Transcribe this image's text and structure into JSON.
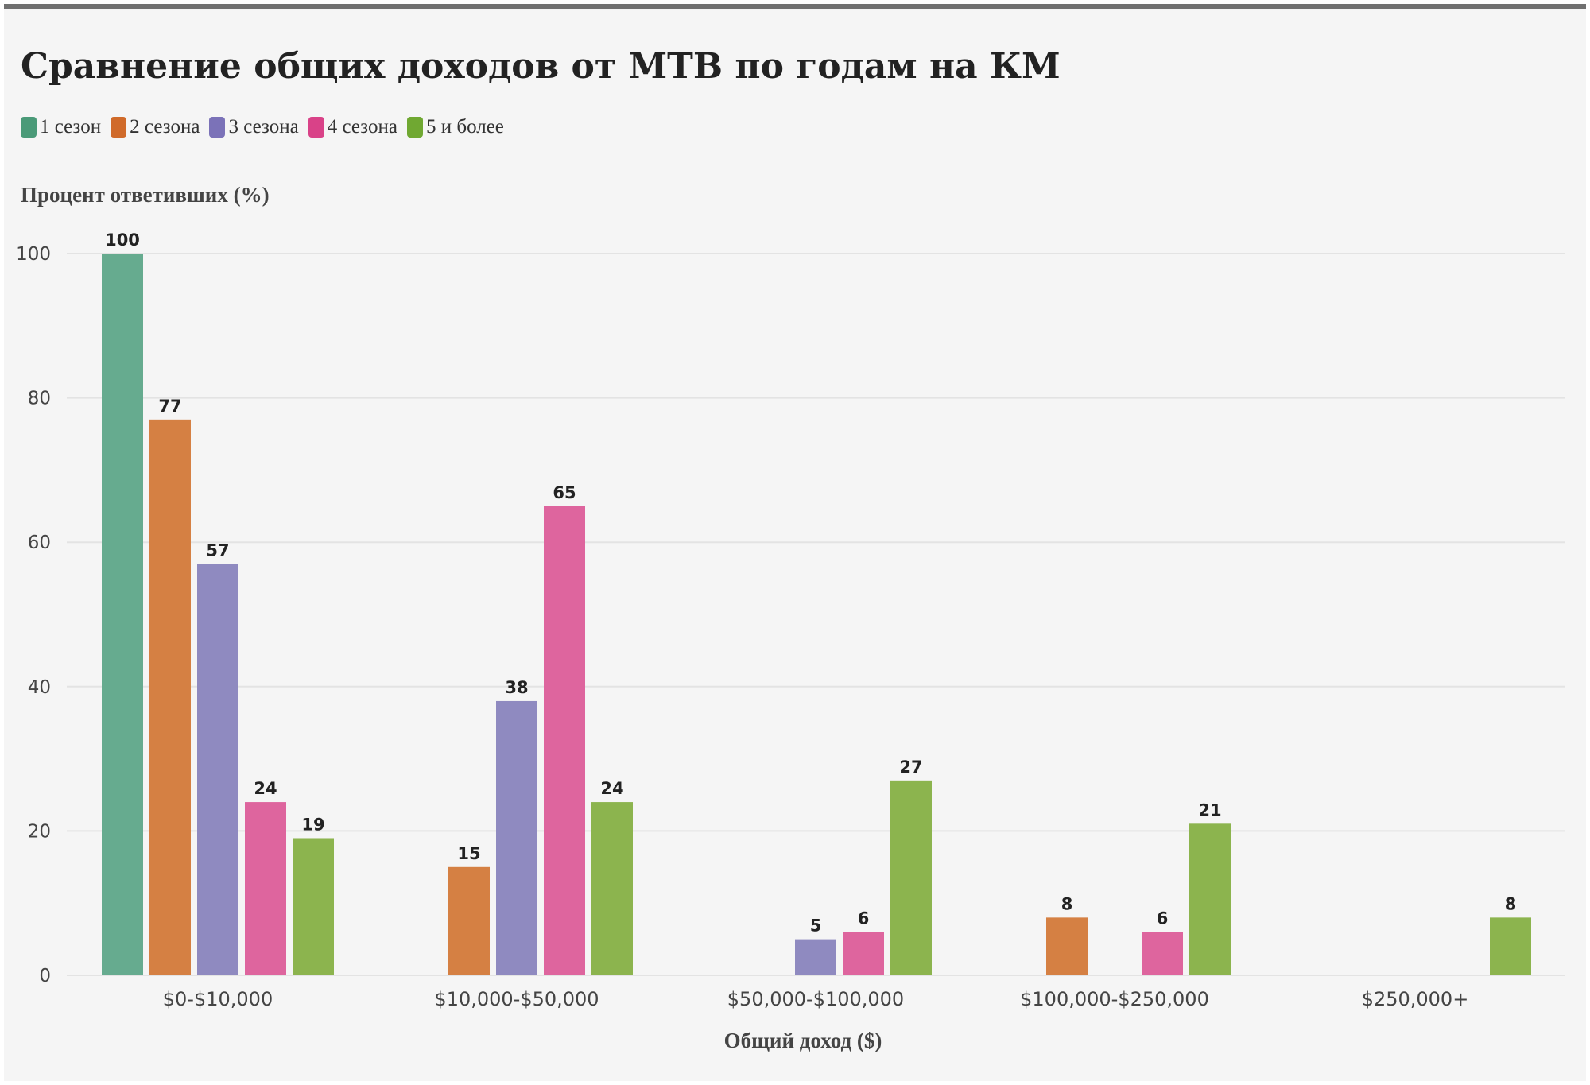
{
  "chart_data": {
    "type": "bar",
    "title": "Сравнение общих доходов от MTB по годам на КМ",
    "xlabel": "Общий доход ($)",
    "ylabel": "Процент ответивших (%)",
    "ylim": [
      0,
      100
    ],
    "yticks": [
      0,
      20,
      40,
      60,
      80,
      100
    ],
    "grid": true,
    "legend_position": "top-left",
    "categories": [
      "$0-$10,000",
      "$10,000-$50,000",
      "$50,000-$100,000",
      "$100,000-$250,000",
      "$250,000+"
    ],
    "series": [
      {
        "name": "1 сезон",
        "color": "#66ab8f",
        "swatch": "#4a9a78",
        "values": [
          100,
          null,
          null,
          null,
          null
        ]
      },
      {
        "name": "2 сезона",
        "color": "#d58043",
        "swatch": "#d06a2a",
        "values": [
          77,
          15,
          null,
          8,
          null
        ]
      },
      {
        "name": "3 сезона",
        "color": "#8f8ac0",
        "swatch": "#7b72b8",
        "values": [
          57,
          38,
          5,
          null,
          null
        ]
      },
      {
        "name": "4 сезона",
        "color": "#de659e",
        "swatch": "#d94288",
        "values": [
          24,
          65,
          6,
          6,
          null
        ]
      },
      {
        "name": "5 и более",
        "color": "#8cb44e",
        "swatch": "#70a832",
        "values": [
          19,
          24,
          27,
          21,
          8
        ]
      }
    ]
  }
}
